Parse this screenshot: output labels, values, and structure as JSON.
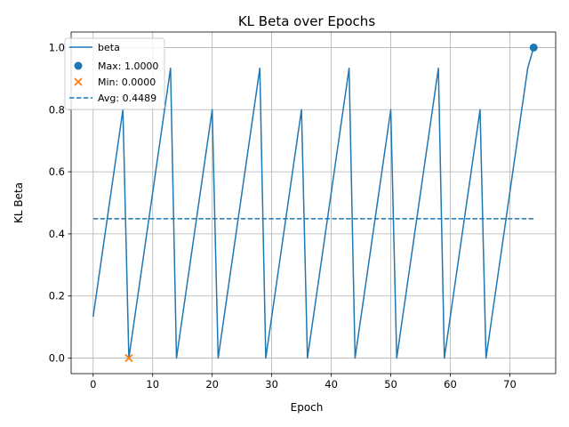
{
  "chart_data": {
    "type": "line",
    "title": "KL Beta over Epochs",
    "xlabel": "Epoch",
    "ylabel": "KL Beta",
    "xlim": [
      -3.7,
      77.7
    ],
    "ylim": [
      -0.05,
      1.05
    ],
    "xticks": [
      0,
      10,
      20,
      30,
      40,
      50,
      60,
      70
    ],
    "yticks": [
      0.0,
      0.2,
      0.4,
      0.6,
      0.8,
      1.0
    ],
    "xtick_labels": [
      "0",
      "10",
      "20",
      "30",
      "40",
      "50",
      "60",
      "70"
    ],
    "ytick_labels": [
      "0.0",
      "0.2",
      "0.4",
      "0.6",
      "0.8",
      "1.0"
    ],
    "grid": true,
    "legend_position": "top-left",
    "colors": {
      "beta": "#1f77b4",
      "max": "#1f77b4",
      "min": "#ff7f0e",
      "avg": "#1f77b4",
      "grid": "#b0b0b0"
    },
    "series": [
      {
        "name": "beta",
        "x": [
          0,
          5,
          6,
          13,
          14,
          20,
          21,
          28,
          29,
          35,
          36,
          43,
          44,
          50,
          51,
          58,
          59,
          65,
          66,
          73,
          74
        ],
        "y": [
          0.1333,
          0.8,
          0.0,
          0.9333,
          0.0,
          0.8,
          0.0,
          0.9333,
          0.0,
          0.8,
          0.0,
          0.9333,
          0.0,
          0.8,
          0.0,
          0.9333,
          0.0,
          0.8,
          0.0,
          0.9333,
          1.0
        ]
      }
    ],
    "max_point": {
      "label": "Max: 1.0000",
      "x": 74,
      "y": 1.0
    },
    "min_point": {
      "label": "Min: 0.0000",
      "x": 6,
      "y": 0.0
    },
    "avg_line": {
      "label": "Avg: 0.4489",
      "value": 0.4489,
      "x_start": 0,
      "x_end": 74
    },
    "legend": [
      "beta",
      "Max: 1.0000",
      "Min: 0.0000",
      "Avg: 0.4489"
    ]
  }
}
